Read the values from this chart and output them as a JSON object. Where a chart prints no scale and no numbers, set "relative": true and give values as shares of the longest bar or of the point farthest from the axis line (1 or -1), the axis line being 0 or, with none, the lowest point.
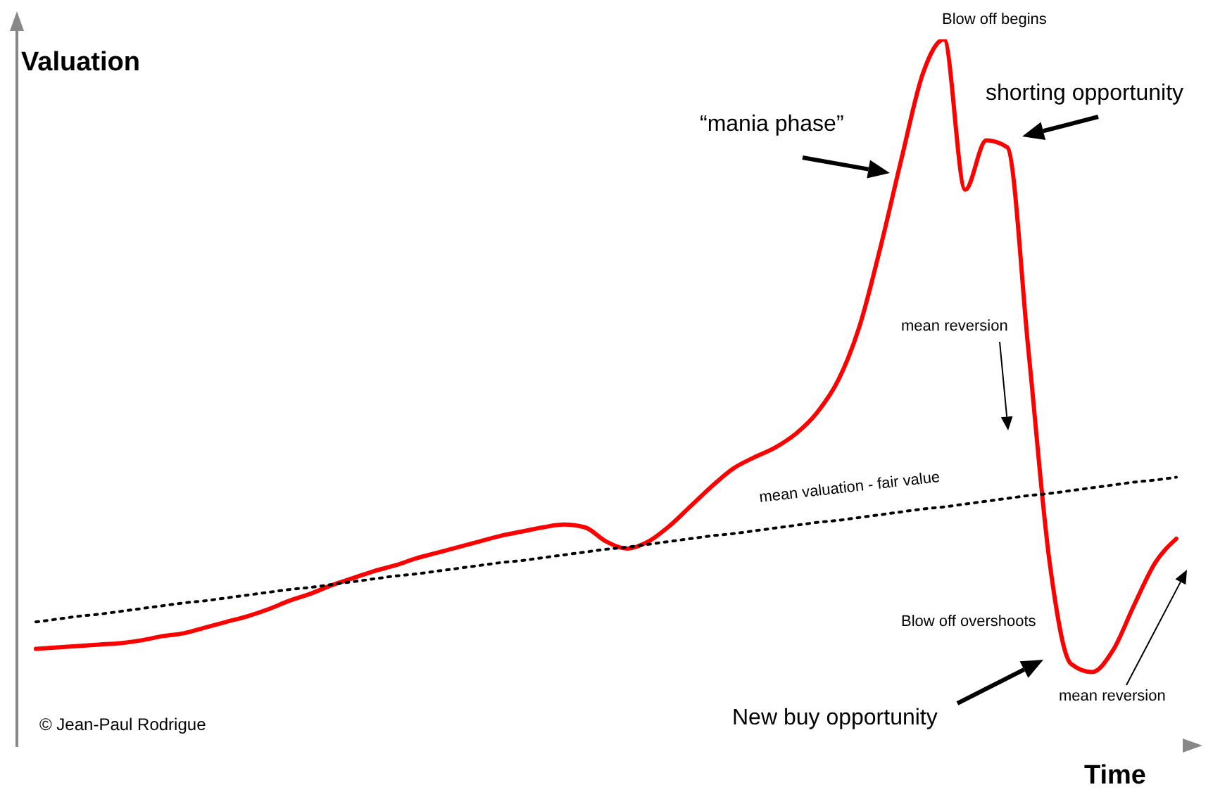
{
  "chart_data": {
    "type": "line",
    "relative": true,
    "xlabel": "Time",
    "ylabel": "Valuation",
    "categories": [
      null,
      null,
      null,
      null,
      null,
      null,
      null,
      null,
      null,
      null,
      null,
      null,
      null,
      null,
      null,
      null,
      null,
      null,
      null,
      null,
      null,
      null,
      null,
      null,
      null,
      null,
      null,
      null,
      null,
      null,
      null,
      null,
      null,
      null,
      null,
      null,
      null,
      null,
      null,
      null,
      null,
      null,
      null,
      null,
      null,
      null,
      null,
      null,
      null,
      null,
      null,
      null,
      null,
      null,
      null
    ],
    "series": [
      {
        "color": "#ff0000",
        "values": [
          0.137,
          0.139,
          0.141,
          0.143,
          0.145,
          0.149,
          0.155,
          0.159,
          0.167,
          0.175,
          0.183,
          0.193,
          0.205,
          0.215,
          0.227,
          0.237,
          0.247,
          0.255,
          0.265,
          0.273,
          0.281,
          0.289,
          0.297,
          0.303,
          0.309,
          0.313,
          0.309,
          0.289,
          0.279,
          0.289,
          0.311,
          0.339,
          0.367,
          0.392,
          0.408,
          0.422,
          0.442,
          0.472,
          0.518,
          0.594,
          0.707,
          0.833,
          0.952,
          1,
          0.787,
          0.857,
          0.847,
          0.558,
          0.259,
          0.116,
          0.104,
          0.135,
          0.199,
          0.259,
          0.293
        ]
      },
      {
        "color": "#000000",
        "line_style": "dotted",
        "values": [
          0.175,
          0.179,
          0.183,
          0.186,
          0.19,
          0.194,
          0.198,
          0.202,
          0.205,
          0.209,
          0.213,
          0.217,
          0.221,
          0.224,
          0.228,
          0.232,
          0.236,
          0.24,
          0.243,
          0.247,
          0.251,
          0.255,
          0.259,
          0.262,
          0.266,
          0.27,
          0.274,
          0.278,
          0.281,
          0.285,
          0.289,
          0.293,
          0.297,
          0.3,
          0.304,
          0.308,
          0.312,
          0.316,
          0.319,
          0.323,
          0.327,
          0.331,
          0.335,
          0.338,
          0.342,
          0.346,
          0.35,
          0.354,
          0.357,
          0.361,
          0.365,
          0.369,
          0.373,
          0.376,
          0.38
        ]
      }
    ],
    "annotations": [
      "Blow off begins",
      "“mania phase”",
      "shorting opportunity",
      "mean reversion",
      "mean valuation - fair value",
      "Blow off overshoots",
      "New buy opportunity",
      "mean reversion",
      "© Jean-Paul Rodrigue"
    ]
  }
}
